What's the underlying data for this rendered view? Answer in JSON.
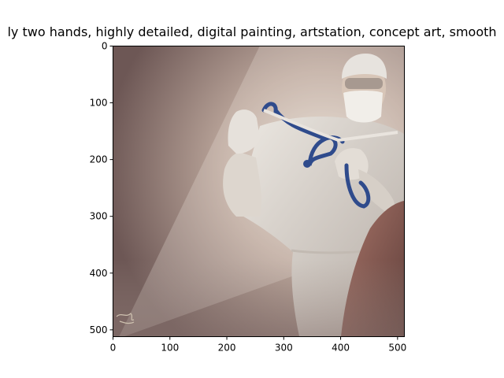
{
  "figure": {
    "title": "ly two hands, highly detailed, digital painting, artstation, concept art, smooth"
  },
  "chart_data": {
    "type": "image",
    "title": "ly two hands, highly detailed, digital painting, artstation, concept art, smooth",
    "xlabel": "",
    "ylabel": "",
    "xlim": [
      0,
      512
    ],
    "ylim": [
      512,
      0
    ],
    "x_ticks": [
      "0",
      "100",
      "200",
      "300",
      "400",
      "500"
    ],
    "y_ticks": [
      "0",
      "100",
      "200",
      "300",
      "400",
      "500"
    ],
    "grid": false,
    "image_subject": "surgeon in white gown, cap, mask and glasses holding a stethoscope with both gloved hands; patient shoulder at lower right",
    "colors": {
      "background_dark": "#6f5a57",
      "background_light": "#e4dad0",
      "gown": "#d9d3cc",
      "stethoscope": "#2f4b8c",
      "patient": "#8a5a52"
    }
  }
}
